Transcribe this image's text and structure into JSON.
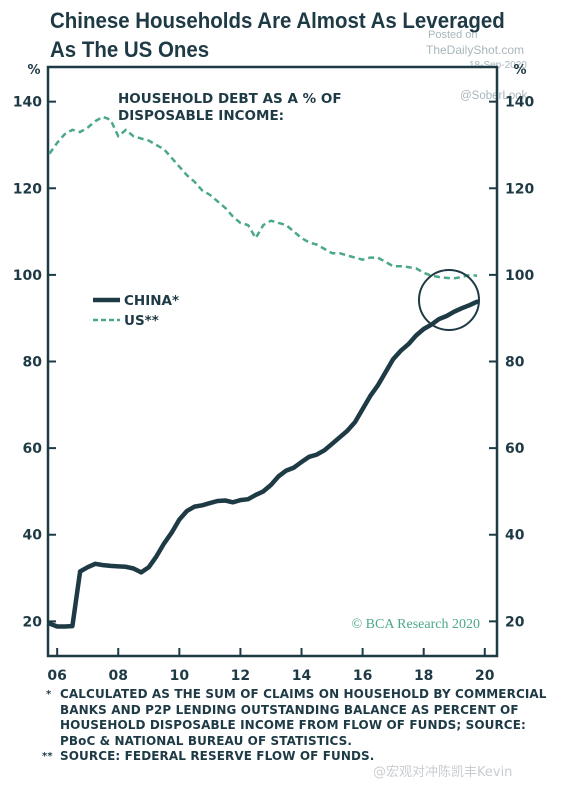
{
  "header": {
    "title": "Chinese Households Are Almost As Leveraged As The US Ones",
    "posted_on": "Posted on",
    "site": "TheDailyShot.com",
    "date": "18-Sep-2020",
    "handle": "@SoberLook"
  },
  "footnotes": {
    "note1_mark": "*",
    "note1": "CALCULATED AS THE SUM OF CLAIMS ON HOUSEHOLD BY COMMERCIAL BANKS AND P2P LENDING OUTSTANDING BALANCE AS PERCENT OF HOUSEHOLD DISPOSABLE INCOME FROM FLOW OF FUNDS; SOURCE: PBoC & NATIONAL BUREAU OF STATISTICS.",
    "note2_mark": "**",
    "note2": "SOURCE: FEDERAL RESERVE FLOW OF FUNDS."
  },
  "watermark": "@宏观对冲陈凯丰Kevin",
  "colors": {
    "navy": "#1e3a45",
    "teal": "#4aa88a",
    "bg": "#ffffff"
  },
  "chart_data": {
    "type": "line",
    "title": "HOUSEHOLD DEBT AS A % OF\nDISPOSABLE INCOME:",
    "ylabel_left": "%",
    "ylabel_right": "%",
    "ylim": [
      12,
      148
    ],
    "xlim": [
      2005.7,
      2020.4
    ],
    "yticks": [
      20,
      40,
      60,
      80,
      100,
      120,
      140
    ],
    "xticks": [
      2006,
      2008,
      2010,
      2012,
      2014,
      2016,
      2018,
      2020
    ],
    "xtick_labels": [
      "06",
      "08",
      "10",
      "12",
      "14",
      "16",
      "18",
      "20"
    ],
    "grid": false,
    "legend_position": "middle-left",
    "annotation": "circle around latest values",
    "credit": "© BCA Research 2020",
    "series": [
      {
        "name": "CHINA*",
        "color": "#1e3a45",
        "style": "solid",
        "x": [
          2005.75,
          2006.0,
          2006.25,
          2006.5,
          2006.75,
          2007.0,
          2007.25,
          2007.5,
          2007.75,
          2008.0,
          2008.25,
          2008.5,
          2008.75,
          2009.0,
          2009.25,
          2009.5,
          2009.75,
          2010.0,
          2010.25,
          2010.5,
          2010.75,
          2011.0,
          2011.25,
          2011.5,
          2011.75,
          2012.0,
          2012.25,
          2012.5,
          2012.75,
          2013.0,
          2013.25,
          2013.5,
          2013.75,
          2014.0,
          2014.25,
          2014.5,
          2014.75,
          2015.0,
          2015.25,
          2015.5,
          2015.75,
          2016.0,
          2016.25,
          2016.5,
          2016.75,
          2017.0,
          2017.25,
          2017.5,
          2017.75,
          2018.0,
          2018.25,
          2018.5,
          2018.75,
          2019.0,
          2019.25,
          2019.5,
          2019.75
        ],
        "values": [
          19.5,
          18.8,
          18.8,
          18.9,
          31.5,
          32.5,
          33.3,
          33.0,
          32.8,
          32.7,
          32.6,
          32.2,
          31.3,
          32.5,
          35.0,
          38.0,
          40.5,
          43.5,
          45.5,
          46.5,
          46.8,
          47.3,
          47.8,
          47.9,
          47.5,
          48.0,
          48.2,
          49.2,
          50.0,
          51.5,
          53.5,
          54.8,
          55.5,
          56.8,
          58.0,
          58.5,
          59.5,
          61.0,
          62.5,
          64.0,
          66.0,
          69.0,
          72.0,
          74.5,
          77.5,
          80.5,
          82.5,
          84.0,
          86.0,
          87.5,
          88.5,
          89.8,
          90.5,
          91.5,
          92.3,
          93.0,
          93.8
        ]
      },
      {
        "name": "US**",
        "color": "#4aa88a",
        "style": "dashed",
        "x": [
          2005.75,
          2006.0,
          2006.25,
          2006.5,
          2006.75,
          2007.0,
          2007.25,
          2007.5,
          2007.75,
          2008.0,
          2008.25,
          2008.5,
          2008.75,
          2009.0,
          2009.25,
          2009.5,
          2009.75,
          2010.0,
          2010.25,
          2010.5,
          2010.75,
          2011.0,
          2011.25,
          2011.5,
          2011.75,
          2012.0,
          2012.25,
          2012.5,
          2012.75,
          2013.0,
          2013.25,
          2013.5,
          2013.75,
          2014.0,
          2014.25,
          2014.5,
          2014.75,
          2015.0,
          2015.25,
          2015.5,
          2015.75,
          2016.0,
          2016.25,
          2016.5,
          2016.75,
          2017.0,
          2017.25,
          2017.5,
          2017.75,
          2018.0,
          2018.25,
          2018.5,
          2018.75,
          2019.0,
          2019.25,
          2019.5,
          2019.75
        ],
        "values": [
          128.0,
          130.5,
          132.5,
          133.5,
          133.0,
          134.0,
          135.5,
          136.5,
          135.8,
          132.0,
          133.5,
          132.0,
          131.5,
          131.0,
          130.0,
          129.0,
          127.0,
          125.0,
          123.0,
          121.5,
          119.5,
          118.5,
          117.0,
          115.5,
          113.5,
          112.0,
          111.5,
          108.5,
          111.5,
          112.5,
          112.0,
          111.5,
          110.0,
          108.5,
          107.5,
          107.0,
          106.0,
          105.0,
          105.0,
          104.5,
          104.0,
          103.5,
          104.0,
          104.0,
          103.0,
          102.0,
          102.0,
          101.8,
          101.5,
          100.5,
          99.8,
          99.5,
          99.3,
          99.2,
          99.5,
          100.0,
          99.8
        ]
      }
    ]
  }
}
